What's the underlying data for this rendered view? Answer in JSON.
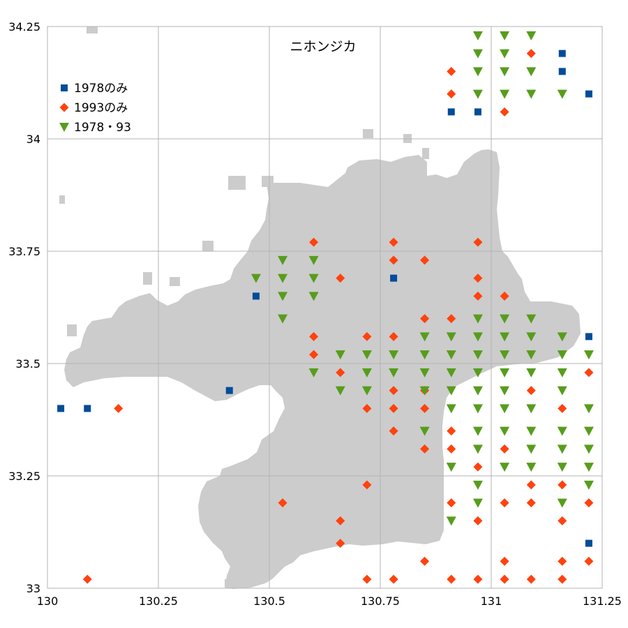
{
  "chart_data": {
    "type": "scatter",
    "title": "ニホンジカ",
    "xlabel": "",
    "ylabel": "",
    "xlim": [
      130,
      131.25
    ],
    "ylim": [
      33,
      34.25
    ],
    "x_ticks": [
      {
        "value": 130,
        "label": "130"
      },
      {
        "value": 130.25,
        "label": "130.25"
      },
      {
        "value": 130.5,
        "label": "130.5"
      },
      {
        "value": 130.75,
        "label": "130.75"
      },
      {
        "value": 131,
        "label": "131"
      },
      {
        "value": 131.25,
        "label": "131.25"
      }
    ],
    "y_ticks": [
      {
        "value": 33,
        "label": "33"
      },
      {
        "value": 33.25,
        "label": "33.25"
      },
      {
        "value": 33.5,
        "label": "33.5"
      },
      {
        "value": 33.75,
        "label": "33.75"
      },
      {
        "value": 34,
        "label": "34"
      },
      {
        "value": 34.25,
        "label": "34.25"
      }
    ],
    "grid": true,
    "legend_position": "top-left",
    "background_map_color": "#cccccc",
    "series": [
      {
        "name": "1978のみ",
        "marker": "square",
        "color": "#004c99",
        "points": [
          [
            130.03,
            33.4
          ],
          [
            130.09,
            33.4
          ],
          [
            130.41,
            33.44
          ],
          [
            130.47,
            33.65
          ],
          [
            130.78,
            33.69
          ],
          [
            130.91,
            34.06
          ],
          [
            130.97,
            34.06
          ],
          [
            131.16,
            34.19
          ],
          [
            131.16,
            34.15
          ],
          [
            131.22,
            34.1
          ],
          [
            131.22,
            33.56
          ],
          [
            131.22,
            33.1
          ]
        ]
      },
      {
        "name": "1993のみ",
        "marker": "diamond",
        "color": "#ff420e",
        "points": [
          [
            130.16,
            33.4
          ],
          [
            130.09,
            33.02
          ],
          [
            130.53,
            33.19
          ],
          [
            130.66,
            33.15
          ],
          [
            130.66,
            33.1
          ],
          [
            130.72,
            33.23
          ],
          [
            130.72,
            33.02
          ],
          [
            130.78,
            33.02
          ],
          [
            130.85,
            33.06
          ],
          [
            130.91,
            33.02
          ],
          [
            130.97,
            33.02
          ],
          [
            131.03,
            33.02
          ],
          [
            131.09,
            33.02
          ],
          [
            131.16,
            33.02
          ],
          [
            131.03,
            33.06
          ],
          [
            131.16,
            33.06
          ],
          [
            131.22,
            33.06
          ],
          [
            130.91,
            33.19
          ],
          [
            131.03,
            33.19
          ],
          [
            131.09,
            33.19
          ],
          [
            131.22,
            33.19
          ],
          [
            130.97,
            33.15
          ],
          [
            131.16,
            33.15
          ],
          [
            131.09,
            33.23
          ],
          [
            131.16,
            33.23
          ],
          [
            130.97,
            33.27
          ],
          [
            131.03,
            33.31
          ],
          [
            130.85,
            33.31
          ],
          [
            130.91,
            33.31
          ],
          [
            130.78,
            33.35
          ],
          [
            130.91,
            33.35
          ],
          [
            130.72,
            33.4
          ],
          [
            130.78,
            33.4
          ],
          [
            130.85,
            33.4
          ],
          [
            131.16,
            33.4
          ],
          [
            130.78,
            33.44
          ],
          [
            130.85,
            33.44
          ],
          [
            131.09,
            33.44
          ],
          [
            130.66,
            33.48
          ],
          [
            131.22,
            33.48
          ],
          [
            130.6,
            33.52
          ],
          [
            130.6,
            33.56
          ],
          [
            130.72,
            33.56
          ],
          [
            130.78,
            33.56
          ],
          [
            130.85,
            33.6
          ],
          [
            130.91,
            33.6
          ],
          [
            130.97,
            33.65
          ],
          [
            131.03,
            33.65
          ],
          [
            130.97,
            33.69
          ],
          [
            130.66,
            33.69
          ],
          [
            130.78,
            33.73
          ],
          [
            130.85,
            33.73
          ],
          [
            130.6,
            33.77
          ],
          [
            130.78,
            33.77
          ],
          [
            130.97,
            33.77
          ],
          [
            130.91,
            34.15
          ],
          [
            130.91,
            34.1
          ],
          [
            131.09,
            34.19
          ],
          [
            131.03,
            34.06
          ]
        ]
      },
      {
        "name": "1978・93",
        "marker": "triangle-down",
        "color": "#579d1c",
        "points": [
          [
            130.97,
            34.23
          ],
          [
            131.03,
            34.23
          ],
          [
            131.09,
            34.23
          ],
          [
            130.97,
            34.19
          ],
          [
            131.03,
            34.19
          ],
          [
            130.97,
            34.15
          ],
          [
            131.03,
            34.15
          ],
          [
            131.09,
            34.15
          ],
          [
            130.97,
            34.1
          ],
          [
            131.03,
            34.1
          ],
          [
            131.09,
            34.1
          ],
          [
            131.16,
            34.1
          ],
          [
            130.47,
            33.69
          ],
          [
            130.53,
            33.73
          ],
          [
            130.6,
            33.73
          ],
          [
            130.53,
            33.69
          ],
          [
            130.6,
            33.69
          ],
          [
            130.53,
            33.65
          ],
          [
            130.6,
            33.65
          ],
          [
            130.53,
            33.6
          ],
          [
            130.6,
            33.48
          ],
          [
            130.66,
            33.52
          ],
          [
            130.72,
            33.52
          ],
          [
            130.78,
            33.52
          ],
          [
            130.85,
            33.52
          ],
          [
            130.91,
            33.52
          ],
          [
            130.97,
            33.52
          ],
          [
            131.03,
            33.52
          ],
          [
            131.09,
            33.52
          ],
          [
            131.16,
            33.52
          ],
          [
            131.22,
            33.52
          ],
          [
            130.72,
            33.48
          ],
          [
            130.78,
            33.48
          ],
          [
            130.85,
            33.48
          ],
          [
            130.91,
            33.48
          ],
          [
            130.97,
            33.48
          ],
          [
            131.03,
            33.48
          ],
          [
            131.09,
            33.48
          ],
          [
            131.16,
            33.48
          ],
          [
            130.66,
            33.44
          ],
          [
            130.72,
            33.44
          ],
          [
            130.85,
            33.44
          ],
          [
            130.91,
            33.44
          ],
          [
            130.97,
            33.44
          ],
          [
            131.03,
            33.44
          ],
          [
            131.16,
            33.44
          ],
          [
            130.91,
            33.4
          ],
          [
            130.97,
            33.4
          ],
          [
            131.03,
            33.4
          ],
          [
            131.09,
            33.4
          ],
          [
            131.22,
            33.4
          ],
          [
            130.85,
            33.35
          ],
          [
            130.97,
            33.35
          ],
          [
            131.03,
            33.35
          ],
          [
            131.09,
            33.35
          ],
          [
            131.16,
            33.35
          ],
          [
            131.22,
            33.35
          ],
          [
            130.97,
            33.31
          ],
          [
            131.09,
            33.31
          ],
          [
            131.16,
            33.31
          ],
          [
            131.22,
            33.31
          ],
          [
            130.91,
            33.27
          ],
          [
            131.03,
            33.27
          ],
          [
            131.09,
            33.27
          ],
          [
            131.16,
            33.27
          ],
          [
            131.22,
            33.27
          ],
          [
            130.97,
            33.23
          ],
          [
            131.22,
            33.23
          ],
          [
            130.97,
            33.19
          ],
          [
            131.16,
            33.19
          ],
          [
            130.91,
            33.15
          ],
          [
            130.85,
            33.56
          ],
          [
            130.91,
            33.56
          ],
          [
            130.97,
            33.56
          ],
          [
            131.03,
            33.56
          ],
          [
            131.09,
            33.56
          ],
          [
            131.16,
            33.56
          ],
          [
            130.97,
            33.6
          ],
          [
            131.03,
            33.6
          ],
          [
            131.09,
            33.6
          ]
        ]
      }
    ]
  }
}
